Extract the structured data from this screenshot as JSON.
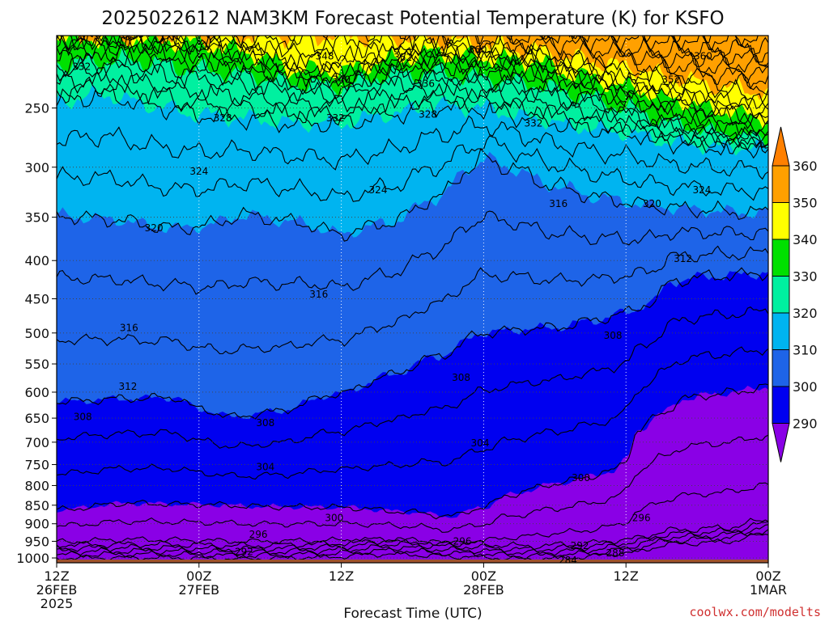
{
  "chart_data": {
    "type": "heatmap",
    "title": "2025022612 NAM3KM Forecast Potential Temperature (K) for KSFO",
    "xlabel": "Forecast Time (UTC)",
    "ylabel": "",
    "credit": "coolwx.com/modelts",
    "x_ticks": [
      {
        "hour": 0,
        "line1": "12Z",
        "line2": "26FEB",
        "line3": "2025"
      },
      {
        "hour": 12,
        "line1": "00Z",
        "line2": "27FEB",
        "line3": ""
      },
      {
        "hour": 24,
        "line1": "12Z",
        "line2": "",
        "line3": ""
      },
      {
        "hour": 36,
        "line1": "00Z",
        "line2": "28FEB",
        "line3": ""
      },
      {
        "hour": 48,
        "line1": "12Z",
        "line2": "",
        "line3": ""
      },
      {
        "hour": 60,
        "line1": "00Z",
        "line2": "1MAR",
        "line3": ""
      }
    ],
    "xlim_hours": [
      0,
      60
    ],
    "y_ticks": [
      250,
      300,
      350,
      400,
      450,
      500,
      550,
      600,
      650,
      700,
      750,
      800,
      850,
      900,
      950,
      1000
    ],
    "ylim_hPa": [
      200,
      1015
    ],
    "y_scale": "log-pressure",
    "surface_pressure_hPa": 1005,
    "grid": true,
    "colorbar": {
      "position": "right",
      "levels": [
        290,
        300,
        310,
        320,
        330,
        340,
        350,
        360
      ],
      "colors": [
        "#8a00e6",
        "#0000f0",
        "#1e64e8",
        "#00b4f0",
        "#00f0a0",
        "#00e000",
        "#b4f000",
        "#ffff00",
        "#ffa000"
      ],
      "under_color": "#8a00e6",
      "over_color": "#ff8000"
    },
    "isotherm_interval_K": 4,
    "isotherm_labels": [
      {
        "value": "360",
        "hour": 35.5,
        "hPa": 209
      },
      {
        "value": "360",
        "hour": 54.5,
        "hPa": 213
      },
      {
        "value": "348",
        "hour": 22.6,
        "hPa": 213
      },
      {
        "value": "352",
        "hour": 29.2,
        "hPa": 214
      },
      {
        "value": "332",
        "hour": 2.1,
        "hPa": 220
      },
      {
        "value": "340",
        "hour": 24.0,
        "hPa": 229
      },
      {
        "value": "336",
        "hour": 31.1,
        "hPa": 232
      },
      {
        "value": "352",
        "hour": 51.8,
        "hPa": 229
      },
      {
        "value": "328",
        "hour": 14.0,
        "hPa": 258
      },
      {
        "value": "332",
        "hour": 23.5,
        "hPa": 258
      },
      {
        "value": "328",
        "hour": 31.3,
        "hPa": 255
      },
      {
        "value": "332",
        "hour": 40.2,
        "hPa": 262
      },
      {
        "value": "324",
        "hour": 12.0,
        "hPa": 304
      },
      {
        "value": "324",
        "hour": 27.1,
        "hPa": 322
      },
      {
        "value": "316",
        "hour": 42.3,
        "hPa": 336
      },
      {
        "value": "320",
        "hour": 50.2,
        "hPa": 336
      },
      {
        "value": "324",
        "hour": 54.4,
        "hPa": 322
      },
      {
        "value": "320",
        "hour": 8.2,
        "hPa": 362
      },
      {
        "value": "312",
        "hour": 52.8,
        "hPa": 398
      },
      {
        "value": "316",
        "hour": 22.1,
        "hPa": 444
      },
      {
        "value": "316",
        "hour": 6.1,
        "hPa": 492
      },
      {
        "value": "308",
        "hour": 46.9,
        "hPa": 504
      },
      {
        "value": "312",
        "hour": 6.0,
        "hPa": 590
      },
      {
        "value": "308",
        "hour": 34.1,
        "hPa": 574
      },
      {
        "value": "308",
        "hour": 2.2,
        "hPa": 647
      },
      {
        "value": "308",
        "hour": 17.6,
        "hPa": 660
      },
      {
        "value": "304",
        "hour": 35.7,
        "hPa": 702
      },
      {
        "value": "304",
        "hour": 17.6,
        "hPa": 756
      },
      {
        "value": "300",
        "hour": 44.2,
        "hPa": 781
      },
      {
        "value": "300",
        "hour": 23.4,
        "hPa": 884
      },
      {
        "value": "296",
        "hour": 49.3,
        "hPa": 884
      },
      {
        "value": "296",
        "hour": 17.0,
        "hPa": 930
      },
      {
        "value": "296",
        "hour": 34.2,
        "hPa": 950
      },
      {
        "value": "292",
        "hour": 15.8,
        "hPa": 981
      },
      {
        "value": "292",
        "hour": 44.1,
        "hPa": 963
      },
      {
        "value": "288",
        "hour": 47.1,
        "hPa": 985
      },
      {
        "value": "284",
        "hour": 43.1,
        "hPa": 1007
      }
    ],
    "fill_bands": [
      {
        "band": 290,
        "profile": [
          [
            0,
            1000
          ],
          [
            8,
            999
          ],
          [
            16,
            1003
          ],
          [
            22,
            998
          ],
          [
            28,
            988
          ],
          [
            34,
            996
          ],
          [
            40,
            1004
          ],
          [
            44,
            998
          ],
          [
            48,
            985
          ],
          [
            52,
            958
          ],
          [
            56,
            952
          ],
          [
            60,
            930
          ]
        ]
      },
      {
        "band": 300,
        "profile": [
          [
            0,
            862
          ],
          [
            6,
            845
          ],
          [
            12,
            848
          ],
          [
            18,
            854
          ],
          [
            24,
            856
          ],
          [
            30,
            868
          ],
          [
            33,
            880
          ],
          [
            36,
            856
          ],
          [
            38,
            824
          ],
          [
            42,
            796
          ],
          [
            45,
            778
          ],
          [
            47,
            764
          ],
          [
            48,
            738
          ],
          [
            49,
            675
          ],
          [
            51,
            640
          ],
          [
            53,
            612
          ],
          [
            55,
            605
          ],
          [
            57,
            600
          ],
          [
            60,
            590
          ]
        ]
      },
      {
        "band": 310,
        "profile": [
          [
            0,
            618
          ],
          [
            6,
            612
          ],
          [
            10,
            610
          ],
          [
            12,
            632
          ],
          [
            15,
            648
          ],
          [
            18,
            638
          ],
          [
            24,
            602
          ],
          [
            28,
            570
          ],
          [
            32,
            538
          ],
          [
            36,
            500
          ],
          [
            38,
            497
          ],
          [
            40,
            493
          ],
          [
            42,
            492
          ],
          [
            45,
            482
          ],
          [
            48,
            470
          ],
          [
            50,
            456
          ],
          [
            52,
            426
          ],
          [
            55,
            420
          ],
          [
            58,
            418
          ],
          [
            60,
            415
          ]
        ]
      },
      {
        "band": 320,
        "profile": [
          [
            0,
            348
          ],
          [
            4,
            352
          ],
          [
            10,
            362
          ],
          [
            12,
            360
          ],
          [
            16,
            348
          ],
          [
            20,
            355
          ],
          [
            24,
            368
          ],
          [
            28,
            356
          ],
          [
            32,
            330
          ],
          [
            35,
            300
          ],
          [
            36,
            292
          ],
          [
            38,
            300
          ],
          [
            42,
            318
          ],
          [
            46,
            330
          ],
          [
            50,
            338
          ],
          [
            54,
            342
          ],
          [
            58,
            345
          ],
          [
            60,
            345
          ]
        ]
      },
      {
        "band": 330,
        "profile": [
          [
            0,
            245
          ],
          [
            4,
            240
          ],
          [
            8,
            248
          ],
          [
            12,
            255
          ],
          [
            16,
            258
          ],
          [
            20,
            262
          ],
          [
            24,
            262
          ],
          [
            28,
            255
          ],
          [
            32,
            248
          ],
          [
            36,
            250
          ],
          [
            40,
            258
          ],
          [
            44,
            265
          ],
          [
            48,
            270
          ],
          [
            52,
            278
          ],
          [
            56,
            282
          ],
          [
            60,
            282
          ]
        ]
      },
      {
        "band": 340,
        "profile": [
          [
            0,
            218
          ],
          [
            6,
            216
          ],
          [
            12,
            222
          ],
          [
            16,
            226
          ],
          [
            20,
            232
          ],
          [
            24,
            234
          ],
          [
            28,
            226
          ],
          [
            32,
            224
          ],
          [
            36,
            228
          ],
          [
            40,
            232
          ],
          [
            44,
            240
          ],
          [
            48,
            250
          ],
          [
            52,
            262
          ],
          [
            56,
            270
          ],
          [
            60,
            275
          ]
        ]
      },
      {
        "band": 350,
        "profile": [
          [
            0,
            200
          ],
          [
            6,
            201
          ],
          [
            12,
            205
          ],
          [
            16,
            210
          ],
          [
            18,
            216
          ],
          [
            20,
            222
          ],
          [
            24,
            223
          ],
          [
            28,
            216
          ],
          [
            32,
            211
          ],
          [
            36,
            214
          ],
          [
            40,
            216
          ],
          [
            44,
            226
          ],
          [
            48,
            234
          ],
          [
            52,
            244
          ],
          [
            56,
            252
          ],
          [
            60,
            258
          ]
        ]
      },
      {
        "band": 360,
        "profile": [
          [
            0,
            200
          ],
          [
            24,
            200
          ],
          [
            28,
            201
          ],
          [
            32,
            203
          ],
          [
            36,
            206
          ],
          [
            40,
            209
          ],
          [
            44,
            215
          ],
          [
            48,
            220
          ],
          [
            52,
            228
          ],
          [
            56,
            234
          ],
          [
            60,
            238
          ]
        ]
      }
    ]
  }
}
